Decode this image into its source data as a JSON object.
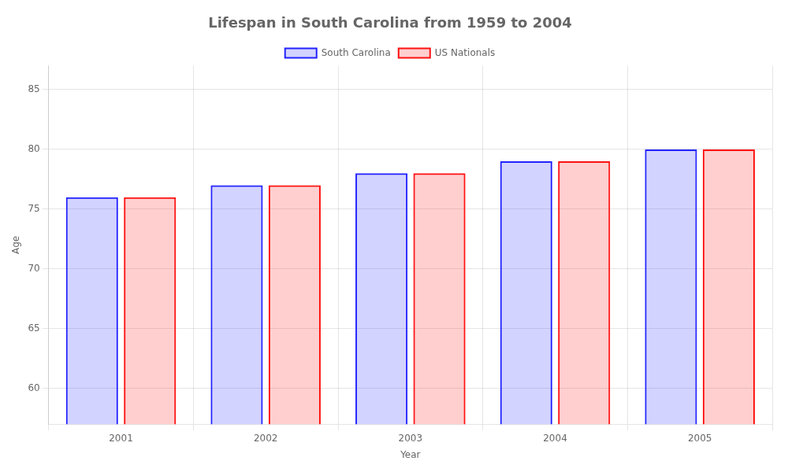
{
  "chart_data": {
    "type": "bar",
    "title": "Lifespan in South Carolina from 1959 to 2004",
    "xlabel": "Year",
    "ylabel": "Age",
    "categories": [
      "2001",
      "2002",
      "2003",
      "2004",
      "2005"
    ],
    "series": [
      {
        "name": "South Carolina",
        "color": "#2222ff",
        "values": [
          76,
          77,
          78,
          79,
          80
        ]
      },
      {
        "name": "US Nationals",
        "color": "#ff1111",
        "values": [
          76,
          77,
          78,
          79,
          80
        ]
      }
    ],
    "ylim": [
      57,
      87
    ],
    "yticks": [
      60,
      65,
      70,
      75,
      80,
      85
    ],
    "grid": true,
    "legend": "top"
  }
}
